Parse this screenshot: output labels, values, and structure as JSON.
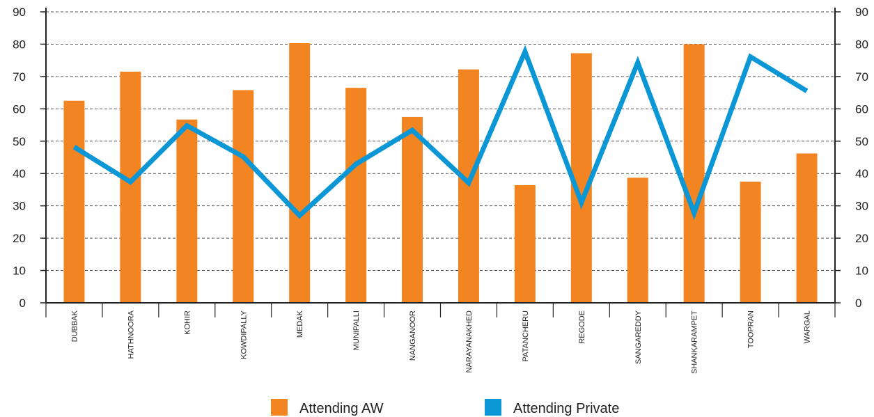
{
  "chart_data": {
    "type": "bar+line",
    "categories": [
      "DUBBAK",
      "HATHNOORA",
      "KOHIR",
      "KOWDIPALLY",
      "MEDAK",
      "MUNIPALLI",
      "NANGANOOR",
      "NARAYANAKHED",
      "PATANCHERU",
      "REGODE",
      "SANGAREDDY",
      "SHANKARAMPET",
      "TOOPRAN",
      "WARGAL"
    ],
    "series": [
      {
        "name": "Attending AW",
        "kind": "bar",
        "color": "#f28422",
        "values": [
          62.5,
          71.5,
          56.7,
          65.8,
          80.3,
          66.5,
          57.5,
          72.2,
          36.4,
          77.2,
          38.7,
          80.0,
          37.5,
          46.2
        ]
      },
      {
        "name": "Attending Private",
        "kind": "line",
        "color": "#0b97d6",
        "values": [
          48.2,
          37.4,
          54.8,
          45.2,
          27.0,
          42.9,
          53.4,
          37.1,
          77.7,
          31.0,
          74.3,
          27.8,
          76.1,
          65.5
        ]
      }
    ],
    "ylim": [
      0,
      90
    ],
    "yticks": [
      0,
      10,
      20,
      30,
      40,
      50,
      60,
      70,
      80,
      90
    ],
    "y_axis_right_mirror": true,
    "grid": "horizontal dashed",
    "legend_position": "bottom-center",
    "title": "",
    "xlabel": "",
    "ylabel": ""
  }
}
